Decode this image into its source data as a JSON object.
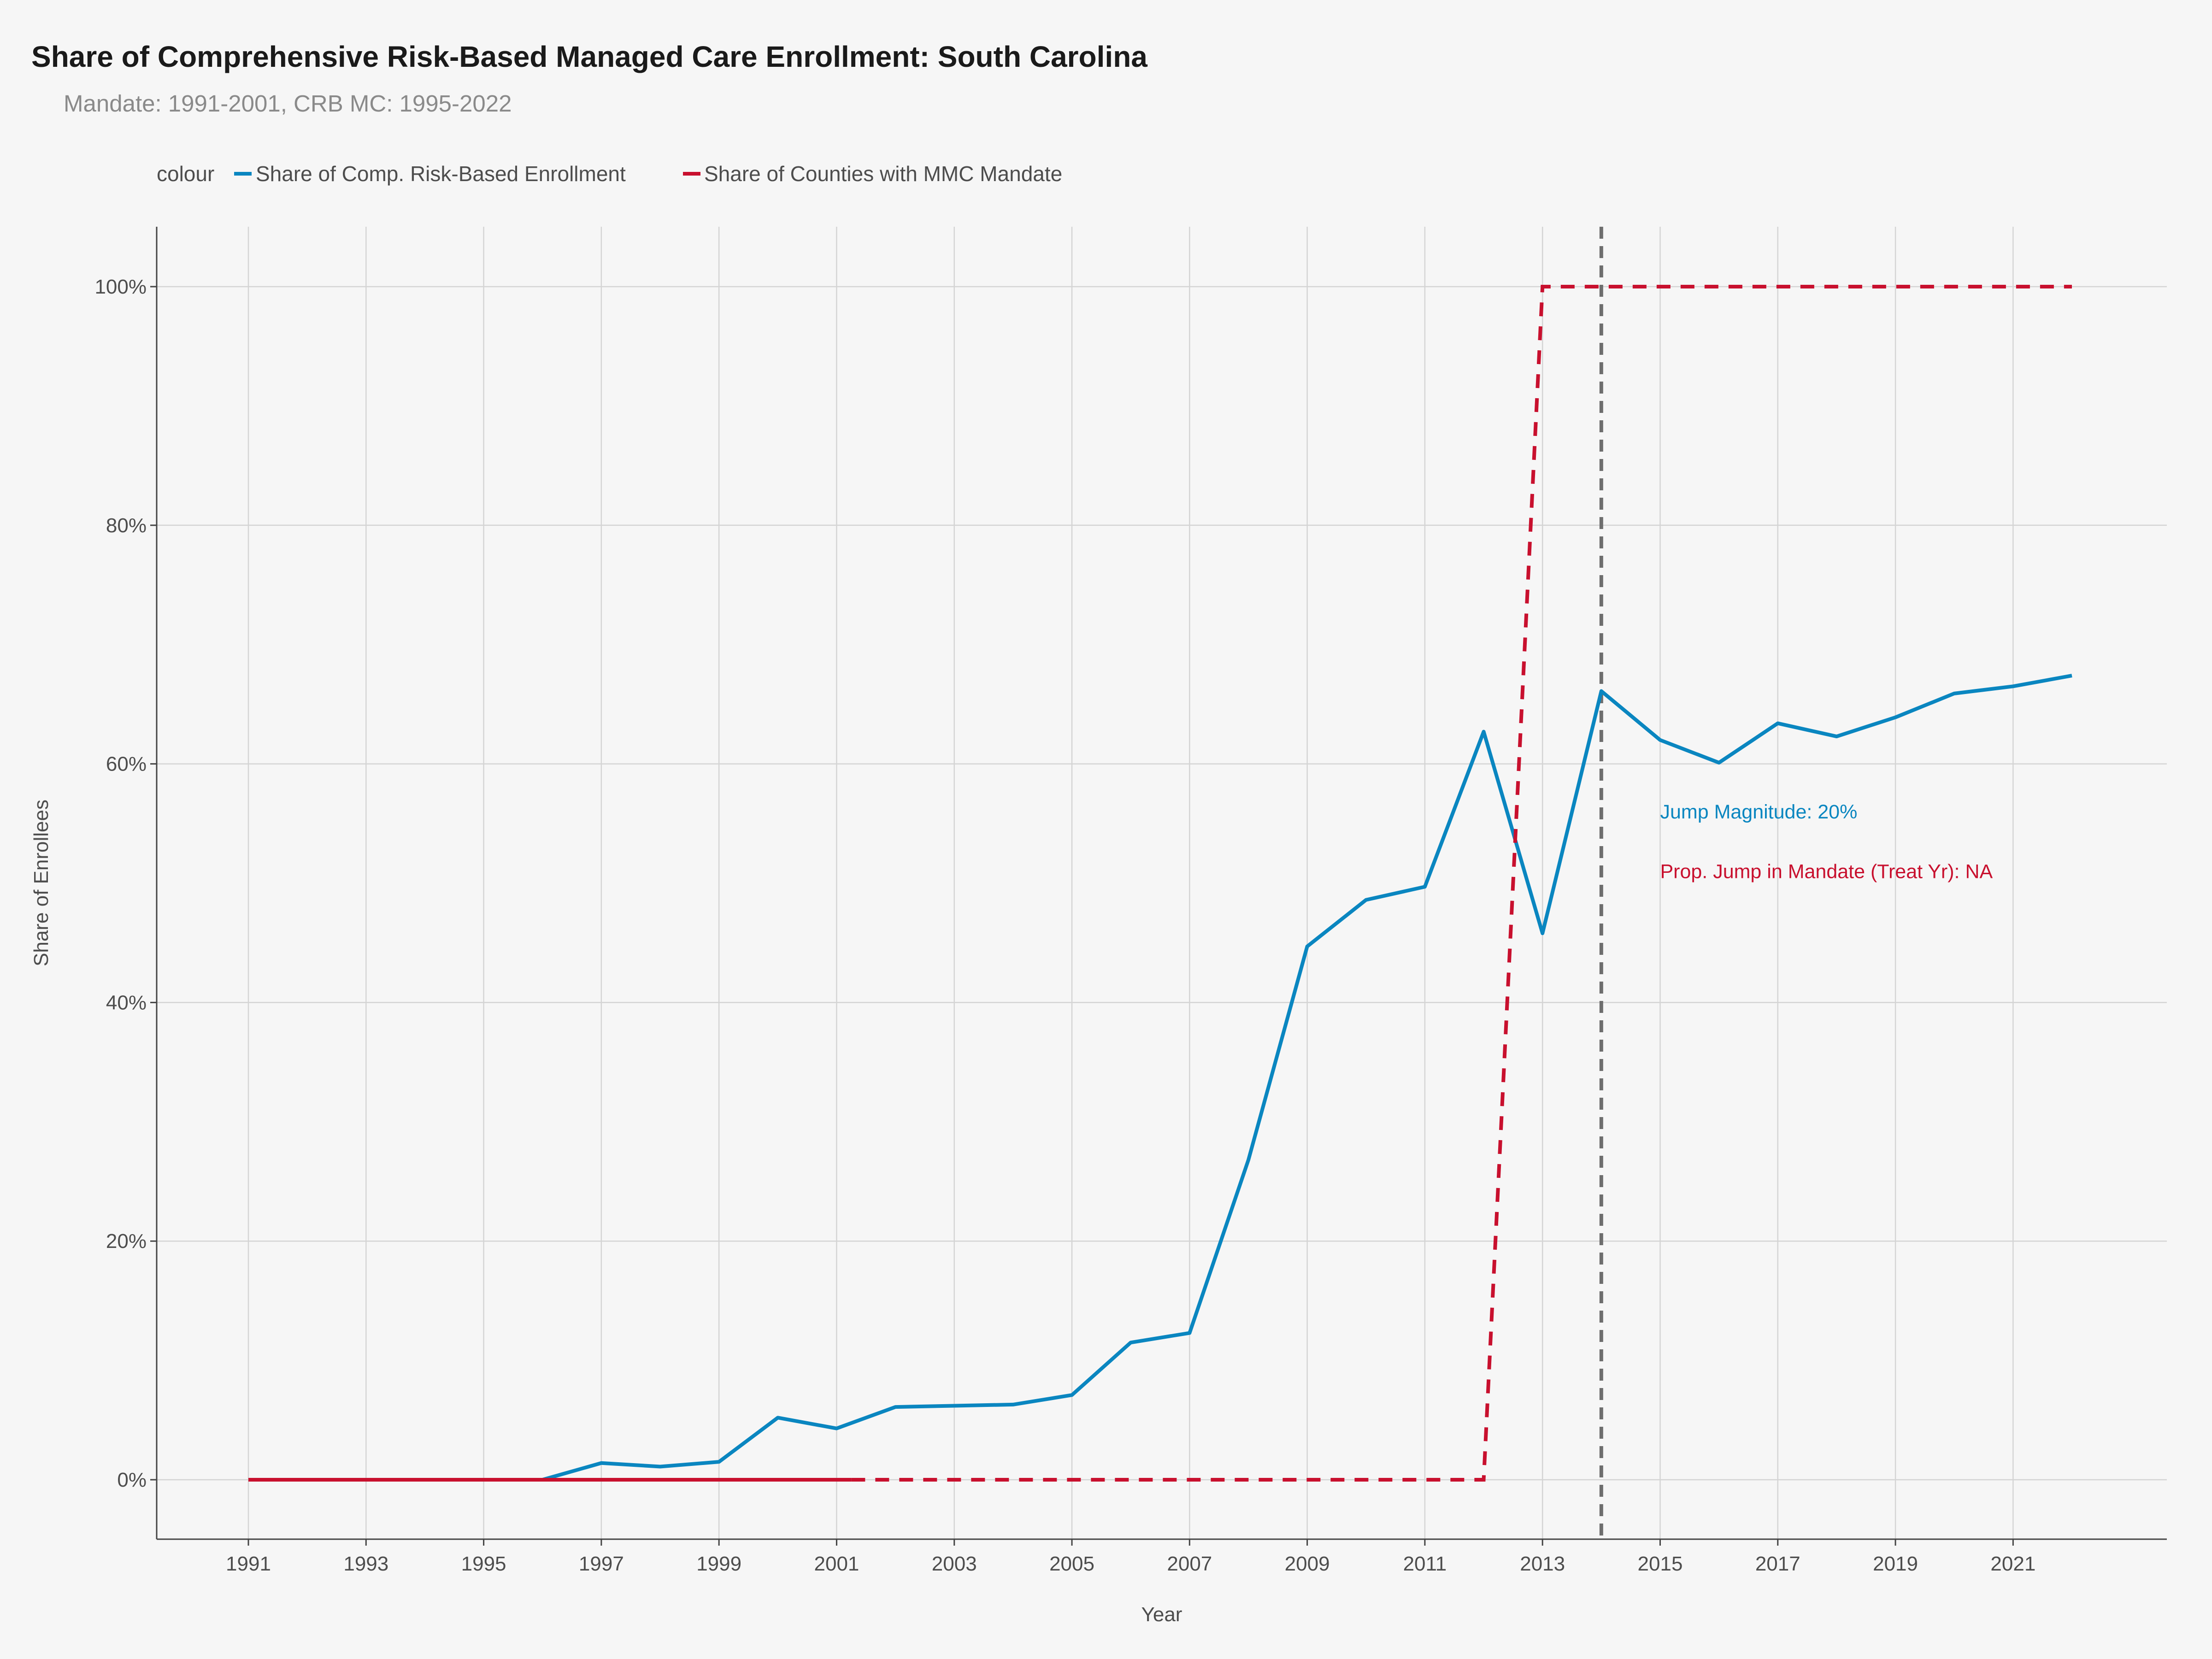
{
  "chart_data": {
    "type": "line",
    "title": "Share of Comprehensive Risk-Based Managed Care Enrollment: South Carolina",
    "subtitle": "Mandate: 1991-2001, CRB MC: 1995-2022",
    "xlabel": "Year",
    "ylabel": "Share of Enrollees",
    "xlim": [
      1991,
      2022
    ],
    "ylim": [
      0,
      1
    ],
    "x_ticks": [
      "1991",
      "1993",
      "1995",
      "1997",
      "1999",
      "2001",
      "2003",
      "2005",
      "2007",
      "2009",
      "2011",
      "2013",
      "2015",
      "2017",
      "2019",
      "2021"
    ],
    "y_ticks": [
      "0%",
      "20%",
      "40%",
      "60%",
      "80%",
      "100%"
    ],
    "grid": true,
    "legend": {
      "position": "top-left",
      "title": "colour",
      "entries": [
        "Share of Comp. Risk-Based Enrollment",
        "Share of Counties with MMC Mandate"
      ]
    },
    "treatment_year": 2014,
    "series": [
      {
        "name": "Share of Comp. Risk-Based Enrollment",
        "color": "#0a86c0",
        "style": "solid",
        "x": [
          1991,
          1992,
          1993,
          1994,
          1995,
          1996,
          1997,
          1998,
          1999,
          2000,
          2001,
          2002,
          2003,
          2004,
          2005,
          2006,
          2007,
          2008,
          2009,
          2010,
          2011,
          2012,
          2013,
          2014,
          2015,
          2016,
          2017,
          2018,
          2019,
          2020,
          2021,
          2022
        ],
        "y": [
          0,
          0,
          0,
          0,
          0,
          0,
          0.014,
          0.011,
          0.015,
          0.052,
          0.043,
          0.061,
          0.062,
          0.063,
          0.071,
          0.115,
          0.123,
          0.268,
          0.447,
          0.486,
          0.497,
          0.627,
          0.458,
          0.661,
          0.62,
          0.601,
          0.634,
          0.623,
          0.639,
          0.659,
          0.665,
          0.674
        ]
      },
      {
        "name": "Share of Counties with MMC Mandate",
        "color": "#c8102e",
        "style": "solid-then-dashed",
        "solid_until": 2001.25,
        "x": [
          1991,
          1992,
          1993,
          1994,
          1995,
          1996,
          1997,
          1998,
          1999,
          2000,
          2001,
          2002,
          2003,
          2004,
          2005,
          2006,
          2007,
          2008,
          2009,
          2010,
          2011,
          2012,
          2013,
          2014,
          2015,
          2016,
          2017,
          2018,
          2019,
          2020,
          2021,
          2022
        ],
        "y": [
          0,
          0,
          0,
          0,
          0,
          0,
          0,
          0,
          0,
          0,
          0,
          0,
          0,
          0,
          0,
          0,
          0,
          0,
          0,
          0,
          0,
          0,
          1,
          1,
          1,
          1,
          1,
          1,
          1,
          1,
          1,
          1
        ]
      }
    ],
    "annotations": [
      {
        "text": "Jump Magnitude: 20%",
        "x": 2015,
        "y": 0.56,
        "color": "#0a86c0"
      },
      {
        "text": "Prop. Jump in Mandate (Treat Yr): NA",
        "x": 2015,
        "y": 0.51,
        "color": "#c8102e"
      }
    ]
  }
}
